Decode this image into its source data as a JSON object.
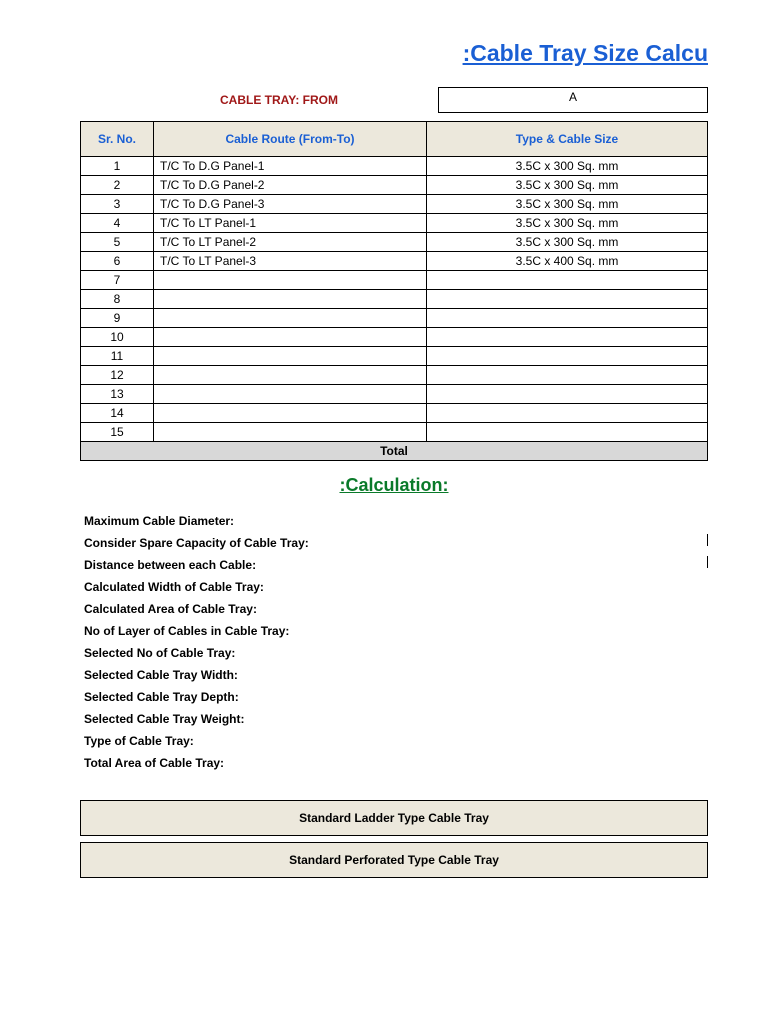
{
  "title": ":Cable Tray Size Calcu",
  "from_label": "CABLE TRAY:  FROM",
  "from_value": "A",
  "table": {
    "headers": {
      "sr": "Sr. No.",
      "route": "Cable Route (From-To)",
      "type": "Type & Cable Size"
    },
    "rows": [
      {
        "sr": "1",
        "route": "T/C To D.G Panel-1",
        "type": "3.5C x 300 Sq. mm"
      },
      {
        "sr": "2",
        "route": "T/C To D.G Panel-2",
        "type": "3.5C x 300 Sq. mm"
      },
      {
        "sr": "3",
        "route": "T/C To D.G Panel-3",
        "type": "3.5C x 300 Sq. mm"
      },
      {
        "sr": "4",
        "route": "T/C To LT  Panel-1",
        "type": "3.5C x 300 Sq. mm"
      },
      {
        "sr": "5",
        "route": "T/C To LT  Panel-2",
        "type": "3.5C x 300 Sq. mm"
      },
      {
        "sr": "6",
        "route": "T/C To LT  Panel-3",
        "type": "3.5C x 400 Sq. mm"
      },
      {
        "sr": "7",
        "route": "",
        "type": ""
      },
      {
        "sr": "8",
        "route": "",
        "type": ""
      },
      {
        "sr": "9",
        "route": "",
        "type": ""
      },
      {
        "sr": "10",
        "route": "",
        "type": ""
      },
      {
        "sr": "11",
        "route": "",
        "type": ""
      },
      {
        "sr": "12",
        "route": "",
        "type": ""
      },
      {
        "sr": "13",
        "route": "",
        "type": ""
      },
      {
        "sr": "14",
        "route": "",
        "type": ""
      },
      {
        "sr": "15",
        "route": "",
        "type": ""
      }
    ],
    "total_label": "Total"
  },
  "calc_title": ":Calculation:",
  "calc_items": [
    "Maximum Cable Diameter:",
    "Consider Spare Capacity of Cable Tray:",
    "Distance between each Cable:",
    "Calculated Width of Cable Tray:",
    "Calculated Area of Cable Tray:",
    "No of Layer of Cables in Cable Tray:",
    "Selected No of Cable Tray:",
    "Selected Cable Tray Width:",
    "Selected Cable Tray Depth:",
    "Selected Cable Tray Weight:",
    "Type of Cable Tray:",
    "Total Area of Cable Tray:"
  ],
  "calc_ticks": [
    false,
    true,
    true,
    false,
    false,
    false,
    false,
    false,
    false,
    false,
    false,
    false
  ],
  "type_boxes": [
    "Standard Ladder Type Cable Tray",
    "Standard Perforated Type Cable Tray"
  ],
  "colors": {
    "title_color": "#1a5fd4",
    "header_bg": "#ece8dc",
    "from_label_color": "#a01818",
    "total_bg": "#d8d8d8",
    "calc_title_color": "#0a7a2a"
  }
}
